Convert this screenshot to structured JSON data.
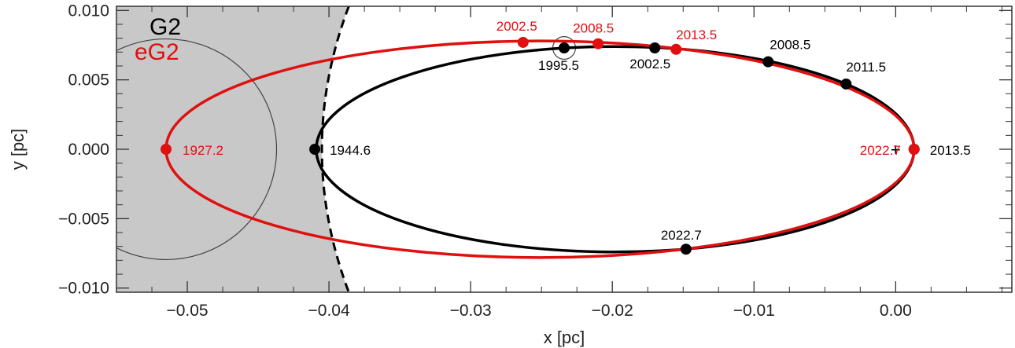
{
  "chart_data": {
    "type": "scatter",
    "xlabel": "x [pc]",
    "ylabel": "y [pc]",
    "xlim": [
      -0.055,
      0.0082
    ],
    "ylim": [
      -0.0103,
      0.0103
    ],
    "x_ticks": [
      {
        "value": -0.05,
        "label": "−0.05"
      },
      {
        "value": -0.04,
        "label": "−0.04"
      },
      {
        "value": -0.03,
        "label": "−0.03"
      },
      {
        "value": -0.02,
        "label": "−0.02"
      },
      {
        "value": -0.01,
        "label": "−0.01"
      },
      {
        "value": 0.0,
        "label": "0.00"
      }
    ],
    "y_ticks": [
      {
        "value": 0.01,
        "label": "0.010"
      },
      {
        "value": 0.005,
        "label": "0.005"
      },
      {
        "value": 0.0,
        "label": "0.000"
      },
      {
        "value": -0.005,
        "label": "−0.005"
      },
      {
        "value": -0.01,
        "label": "−0.010"
      }
    ],
    "legend": [
      "G2",
      "eG2"
    ],
    "legend_placement": "top-left",
    "colors": {
      "G2": "#000000",
      "eG2": "#e01010",
      "shade": "#c8c8c8"
    },
    "series": [
      {
        "name": "G2",
        "color": "#000000",
        "orbit": {
          "center_x": -0.0198,
          "center_y": 0.0,
          "semi_axis_x": 0.0211,
          "semi_axis_y": 0.0074
        },
        "points": [
          {
            "x": 0.0013,
            "y": 0.0,
            "label": "2013.5"
          },
          {
            "x": -0.0035,
            "y": 0.0047,
            "label": "2011.5"
          },
          {
            "x": -0.009,
            "y": 0.0063,
            "label": "2008.5"
          },
          {
            "x": -0.017,
            "y": 0.0073,
            "label": "2002.5"
          },
          {
            "x": -0.0234,
            "y": 0.0073,
            "label": "1995.5"
          },
          {
            "x": -0.041,
            "y": 0.0,
            "label": "1944.6"
          },
          {
            "x": -0.0148,
            "y": -0.0072,
            "label": "2022.7"
          }
        ]
      },
      {
        "name": "eG2",
        "color": "#e01010",
        "orbit": {
          "center_x": -0.0251,
          "center_y": 0.0,
          "semi_axis_x": 0.0264,
          "semi_axis_y": 0.0078
        },
        "points": [
          {
            "x": 0.0013,
            "y": 0.0,
            "label": "2022.7"
          },
          {
            "x": -0.0155,
            "y": 0.0072,
            "label": "2013.5"
          },
          {
            "x": -0.021,
            "y": 0.0076,
            "label": "2008.5"
          },
          {
            "x": -0.0263,
            "y": 0.0077,
            "label": "2002.5"
          },
          {
            "x": -0.0515,
            "y": 0.0,
            "label": "1927.2"
          }
        ]
      }
    ],
    "annotations": {
      "central_mass_marker": {
        "x": 0.0,
        "y": 0.0,
        "symbol": "+"
      },
      "shaded_region_boundary": {
        "x_at_center": -0.0405,
        "x_at_limits": -0.0386
      },
      "circles": [
        {
          "x": -0.0515,
          "y": 0.0,
          "radius": 0.0078
        },
        {
          "x": -0.0234,
          "y": 0.0073,
          "radius": 0.0008
        }
      ]
    },
    "grid": false
  }
}
